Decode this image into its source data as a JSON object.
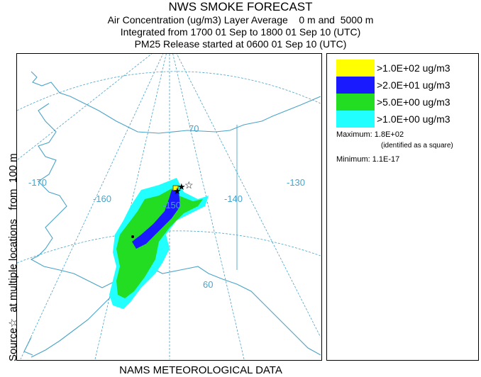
{
  "header": {
    "title": "NWS SMOKE FORECAST",
    "line1": "Air Concentration (ug/m3) Layer Average    0 m and  5000 m",
    "line2": "Integrated from 1700 01 Sep to 1800 01 Sep 10 (UTC)",
    "line3": "PM25 Release started at 0600 01 Sep 10 (UTC)"
  },
  "side_label": "Source☆  at multiple locations   from  100 m",
  "footer": "NAMS METEOROLOGICAL DATA",
  "map": {
    "lon_labels": [
      "-170",
      "-160",
      "-150",
      "-140",
      "-130"
    ],
    "lat_labels": [
      "70",
      "60"
    ],
    "colors": {
      "grid": "#4aa3c8",
      "coast": "#4aa3c8"
    }
  },
  "legend": {
    "items": [
      {
        "label": ">1.0E+02 ug/m3",
        "color": "#ffff00"
      },
      {
        "label": ">2.0E+01 ug/m3",
        "color": "#1a1aff"
      },
      {
        "label": ">5.0E+00 ug/m3",
        "color": "#22dd22"
      },
      {
        "label": ">1.0E+00 ug/m3",
        "color": "#22ffff"
      }
    ],
    "maximum": "Maximum: 1.8E+02",
    "max_note": "(identified as a square)",
    "minimum": "Minimum: 1.1E-17"
  }
}
